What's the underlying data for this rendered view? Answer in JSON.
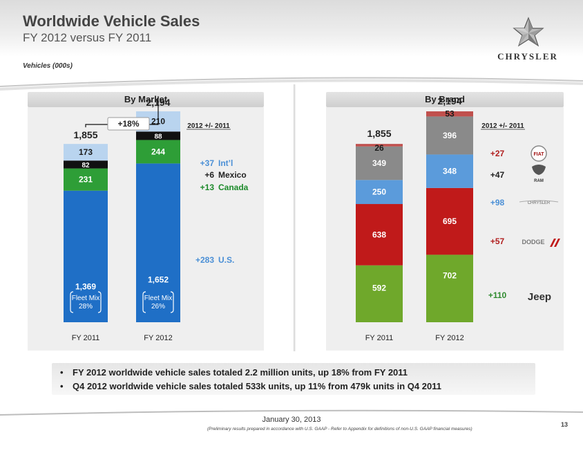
{
  "header": {
    "title": "Worldwide Vehicle Sales",
    "subtitle": "FY 2012 versus FY 2011",
    "units_note": "Vehicles (000s)",
    "brand_logo_text": "CHRYSLER"
  },
  "colors": {
    "us": "#1f6fc6",
    "canada": "#2e9e37",
    "mexico": "#111111",
    "intl": "#b9d4ef",
    "jeep": "#6fa82b",
    "dodge": "#c01a1a",
    "chrysler": "#5b9bdb",
    "ram": "#8a8a8a",
    "fiat": "#c0504d",
    "intl_label": "#4a8fd6",
    "canada_label": "#1c8a2a",
    "positive_red": "#b22020"
  },
  "chart_data": [
    {
      "type": "bar",
      "stacked": true,
      "title": "By Market",
      "categories": [
        "FY 2011",
        "FY 2012"
      ],
      "series": [
        {
          "name": "U.S.",
          "values": [
            1369,
            1652
          ],
          "change": "+283"
        },
        {
          "name": "Canada",
          "values": [
            231,
            244
          ],
          "change": "+13"
        },
        {
          "name": "Mexico",
          "values": [
            82,
            88
          ],
          "change": "+6"
        },
        {
          "name": "Int'l",
          "values": [
            173,
            210
          ],
          "change": "+37"
        }
      ],
      "totals": [
        "1,855",
        "2,194"
      ],
      "growth_label": "+18%",
      "change_header": "2012 +/- 2011",
      "fleet_mix": [
        {
          "label": "Fleet Mix",
          "value": "28%"
        },
        {
          "label": "Fleet Mix",
          "value": "26%"
        }
      ],
      "value_labels": {
        "U.S.": [
          "1,369",
          "1,652"
        ],
        "Canada": [
          "231",
          "244"
        ],
        "Mexico": [
          "82",
          "88"
        ],
        "Int'l": [
          "173",
          "210"
        ]
      },
      "change_labels": [
        {
          "value": "+37",
          "name": "Int’l"
        },
        {
          "value": "+6",
          "name": "Mexico"
        },
        {
          "value": "+13",
          "name": "Canada"
        },
        {
          "value": "+283",
          "name": "U.S."
        }
      ]
    },
    {
      "type": "bar",
      "stacked": true,
      "title": "By Brand",
      "categories": [
        "FY 2011",
        "FY 2012"
      ],
      "series": [
        {
          "name": "Jeep",
          "values": [
            592,
            702
          ],
          "change": "+110"
        },
        {
          "name": "Dodge",
          "values": [
            638,
            695
          ],
          "change": "+57"
        },
        {
          "name": "Chrysler",
          "values": [
            250,
            348
          ],
          "change": "+98"
        },
        {
          "name": "Ram",
          "values": [
            349,
            396
          ],
          "change": "+47"
        },
        {
          "name": "Fiat",
          "values": [
            26,
            53
          ],
          "change": "+27"
        }
      ],
      "totals": [
        "1,855",
        "2,194"
      ],
      "change_header": "2012 +/- 2011",
      "value_labels": {
        "Jeep": [
          "592",
          "702"
        ],
        "Dodge": [
          "638",
          "695"
        ],
        "Chrysler": [
          "250",
          "348"
        ],
        "Ram": [
          "349",
          "396"
        ],
        "Fiat": [
          "26",
          "53"
        ]
      },
      "change_labels": [
        "+27",
        "+47",
        "+98",
        "+57",
        "+110"
      ],
      "brand_logos": {
        "fiat": "FIAT",
        "ram": "RAM",
        "chrysler": "CHRYSLER",
        "dodge": "DODGE",
        "jeep": "Jeep"
      }
    }
  ],
  "bullets": [
    "FY 2012 worldwide vehicle sales totaled 2.2 million units, up 18% from FY 2011",
    "Q4 2012 worldwide vehicle sales totaled 533k units, up 11% from 479k units in Q4 2011"
  ],
  "footer": {
    "date": "January 30, 2013",
    "note": "(Preliminary results prepared in accordance with U.S. GAAP - Refer to Appendix for definitions of non-U.S. GAAP financial measures)",
    "page_number": "13"
  }
}
